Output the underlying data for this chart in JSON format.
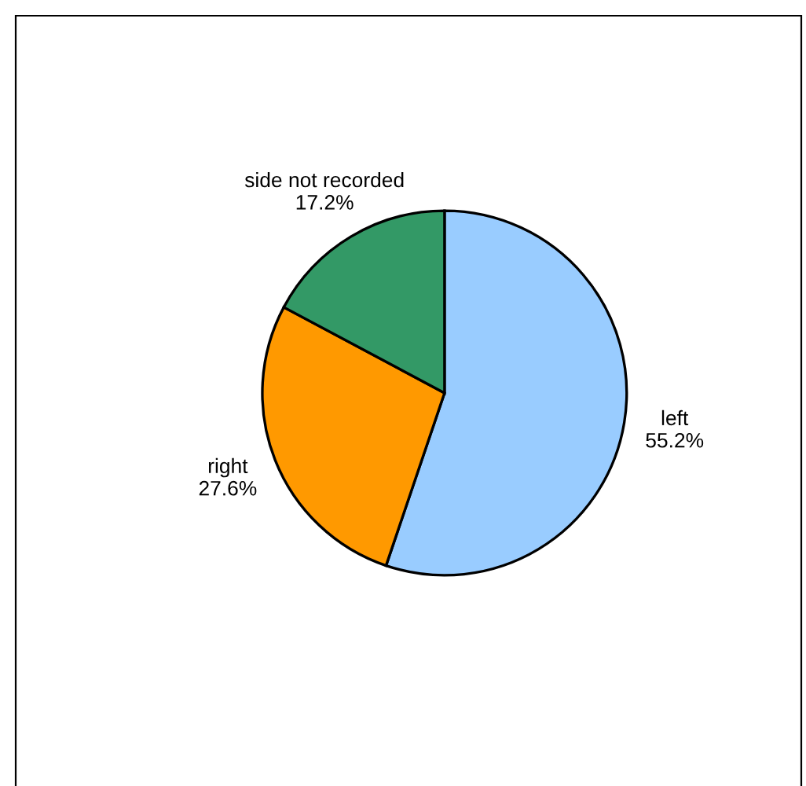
{
  "chart_data": {
    "type": "pie",
    "categories": [
      "left",
      "right",
      "side not recorded"
    ],
    "values": [
      55.2,
      27.6,
      17.2
    ],
    "value_labels": [
      "55.2%",
      "27.6%",
      "17.2%"
    ],
    "colors": [
      "#99ccff",
      "#ff9900",
      "#339966"
    ],
    "legend": false
  }
}
